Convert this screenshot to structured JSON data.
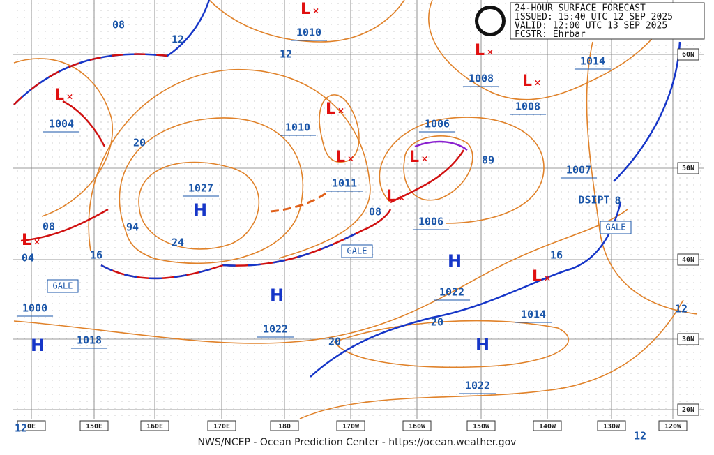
{
  "header": {
    "lines": [
      "24-HOUR SURFACE FORECAST",
      "ISSUED: 15:40 UTC 12 SEP 2025",
      "VALID:  12:00 UTC 13 SEP 2025",
      "FCSTR:  Ehrbar"
    ]
  },
  "footer": "NWS/NCEP - Ocean Prediction Center - https://ocean.weather.gov",
  "longitudes": [
    "0E",
    "150E",
    "160E",
    "170E",
    "180",
    "170W",
    "160W",
    "150W",
    "140W",
    "130W",
    "120W"
  ],
  "latitudes": [
    "60N",
    "50N",
    "40N",
    "30N",
    "20N"
  ],
  "pressure_labels": [
    "1010",
    "12",
    "08",
    "12",
    "1004",
    "20",
    "1027",
    "94",
    "24",
    "1010",
    "1011",
    "1006",
    "89",
    "1008",
    "1008",
    "1014",
    "1007",
    "08",
    "1006",
    "08",
    "04",
    "16",
    "1000",
    "1018",
    "1022",
    "1022",
    "20",
    "1014",
    "16",
    "20",
    "1022",
    "8",
    "12",
    "12",
    "12"
  ],
  "highs": [
    "H",
    "H",
    "H",
    "H",
    "H"
  ],
  "lows": [
    "L",
    "L",
    "L",
    "L",
    "L",
    "L",
    "L",
    "L",
    "L",
    "L"
  ],
  "boxed_labels": [
    "GALE",
    "GALE",
    "GALE"
  ],
  "dissipating": "DSIPT"
}
